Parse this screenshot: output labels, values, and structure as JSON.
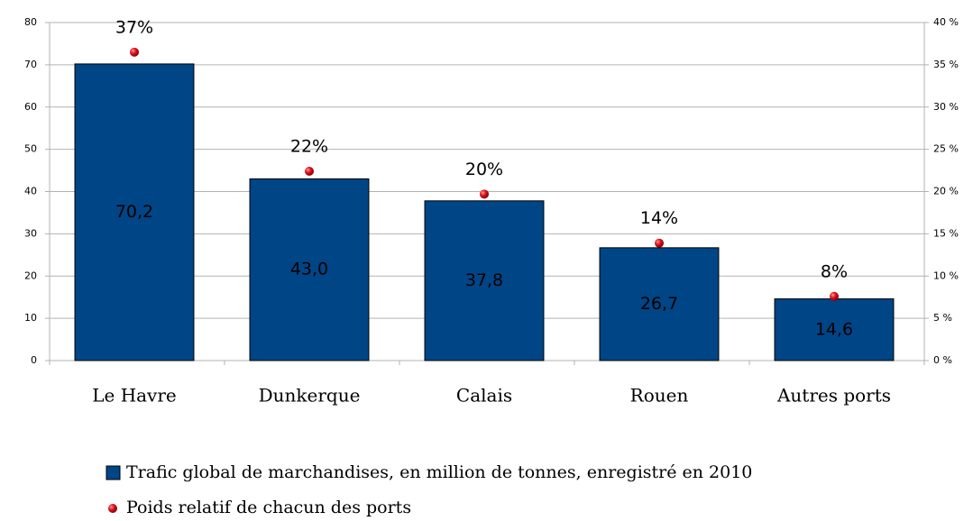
{
  "chart_data": {
    "type": "bar",
    "categories": [
      "Le Havre",
      "Dunkerque",
      "Calais",
      "Rouen",
      "Autres ports"
    ],
    "series": [
      {
        "name": "Trafic global de marchandises, en million de tonnes, enregistré en 2010",
        "color": "#004586",
        "values": [
          70.2,
          43.0,
          37.8,
          26.7,
          14.6
        ],
        "value_labels": [
          "70,2",
          "43,0",
          "37,8",
          "26,7",
          "14,6"
        ]
      },
      {
        "name": "Poids relatif de chacun des ports",
        "color": "#e0101a",
        "axis": "y2",
        "values": [
          36.5,
          22.4,
          19.7,
          13.9,
          7.6
        ],
        "value_labels": [
          "37%",
          "22%",
          "20%",
          "14%",
          "8%"
        ]
      }
    ],
    "ylim": [
      0,
      80
    ],
    "yticks": [
      0,
      10,
      20,
      30,
      40,
      50,
      60,
      70,
      80
    ],
    "y2lim": [
      0,
      40
    ],
    "y2ticks": [
      {
        "value": 0,
        "label": "0 %"
      },
      {
        "value": 5,
        "label": "5 %"
      },
      {
        "value": 10,
        "label": "10 %"
      },
      {
        "value": 15,
        "label": "15 %"
      },
      {
        "value": 20,
        "label": "20 %"
      },
      {
        "value": 25,
        "label": "25 %"
      },
      {
        "value": 30,
        "label": "30 %"
      },
      {
        "value": 35,
        "label": "35 %"
      },
      {
        "value": 40,
        "label": "40 %"
      }
    ],
    "grid": true
  }
}
